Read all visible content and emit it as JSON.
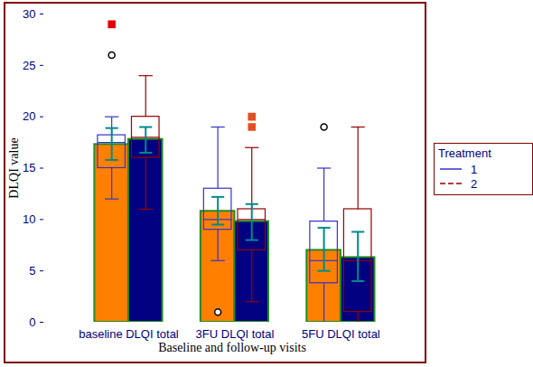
{
  "chart_data": {
    "type": "bar",
    "x_label": "Baseline and follow-up visits",
    "y_label": "DLQI value",
    "categories": [
      "baseline DLQI total",
      "3FU DLQI total",
      "5FU DLQI total"
    ],
    "ylim": [
      0,
      30
    ],
    "yticks": [
      0,
      5,
      10,
      15,
      20,
      25,
      30
    ],
    "legend": "right",
    "legend_title": "Treatment",
    "series": [
      {
        "name": "1",
        "color": "#3333cc",
        "line_style": "solid",
        "colors": [
          "#ff8000",
          "#ff8000",
          "#ff8000"
        ],
        "values": [
          17.3,
          10.8,
          7.0
        ],
        "ci_low": [
          15.8,
          9.5,
          5.0
        ],
        "ci_high": [
          18.9,
          12.2,
          9.2
        ],
        "q1": [
          15.0,
          9.0,
          3.8
        ],
        "median": [
          17.5,
          10.0,
          6.0
        ],
        "q3": [
          18.2,
          13.0,
          9.8
        ],
        "whisker_low": [
          12.0,
          6.0,
          0.0
        ],
        "whisker_high": [
          20.0,
          19.0,
          15.0
        ],
        "outliers": [
          [
            26
          ],
          [
            1
          ],
          [
            19
          ]
        ],
        "far_outliers": [
          [
            29
          ],
          [],
          []
        ]
      },
      {
        "name": "2",
        "color": "#990000",
        "line_style": "dashed",
        "colors": [
          "#000080",
          "#000080",
          "#000080"
        ],
        "values": [
          17.8,
          9.8,
          6.3
        ],
        "ci_low": [
          16.5,
          8.0,
          4.0
        ],
        "ci_high": [
          19.0,
          11.5,
          8.8
        ],
        "q1": [
          16.0,
          7.0,
          1.0
        ],
        "median": [
          18.0,
          10.0,
          6.0
        ],
        "q3": [
          20.0,
          11.0,
          11.0
        ],
        "whisker_low": [
          11.0,
          2.0,
          0.0
        ],
        "whisker_high": [
          24.0,
          17.0,
          19.0
        ],
        "outliers": [
          [],
          [],
          []
        ],
        "far_outliers": [
          [],
          [
            19,
            20
          ],
          []
        ]
      }
    ]
  }
}
